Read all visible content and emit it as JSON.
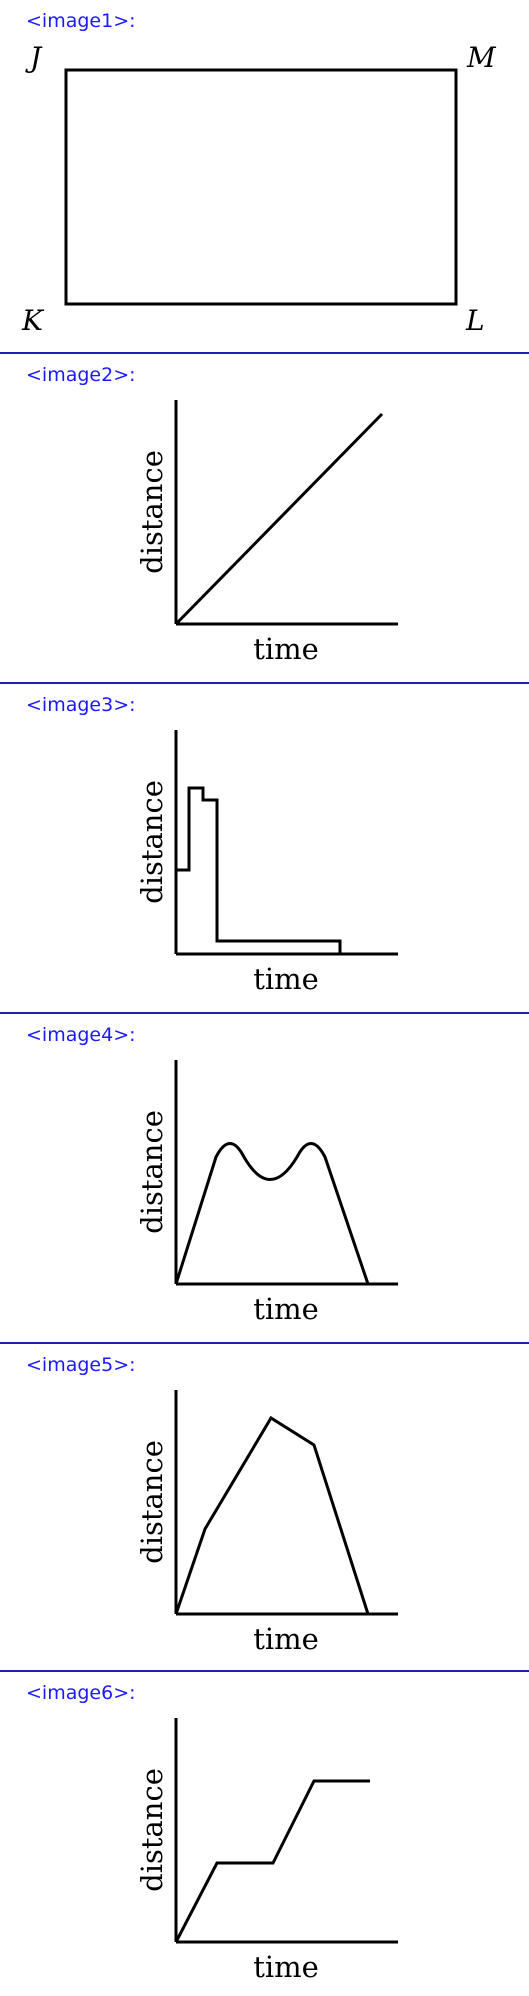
{
  "panels": [
    {
      "label": "<image1>:",
      "vertices": {
        "top_left": "J",
        "top_right": "M",
        "bottom_left": "K",
        "bottom_right": "L"
      }
    },
    {
      "label": "<image2>:",
      "ylabel": "distance",
      "xlabel": "time"
    },
    {
      "label": "<image3>:",
      "ylabel": "distance",
      "xlabel": "time"
    },
    {
      "label": "<image4>:",
      "ylabel": "distance",
      "xlabel": "time"
    },
    {
      "label": "<image5>:",
      "ylabel": "distance",
      "xlabel": "time"
    },
    {
      "label": "<image6>:",
      "ylabel": "distance",
      "xlabel": "time"
    }
  ],
  "colors": {
    "label": "#1a1aff",
    "divider": "#1f1fb0",
    "stroke": "#000000"
  }
}
